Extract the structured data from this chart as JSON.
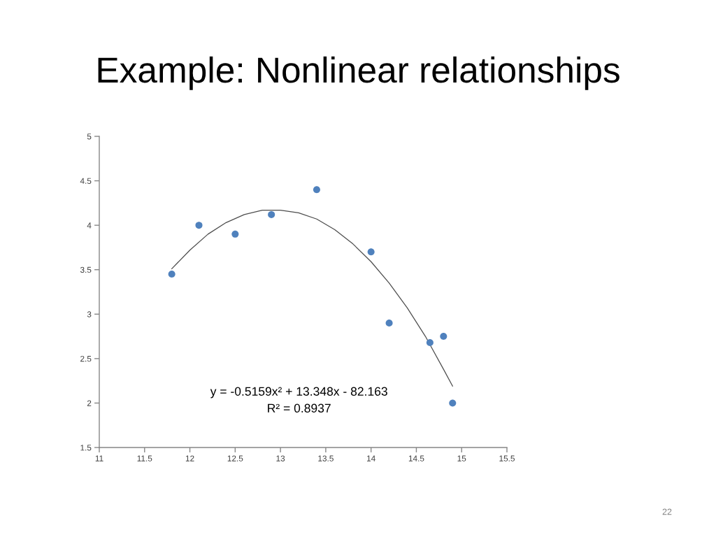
{
  "chart_data": {
    "type": "scatter",
    "title": "Example: Nonlinear relationships",
    "xlim": [
      11,
      15.5
    ],
    "xticks": [
      11,
      11.5,
      12,
      12.5,
      13,
      13.5,
      14,
      14.5,
      15,
      15.5
    ],
    "ylim": [
      1.5,
      5
    ],
    "yticks": [
      1.5,
      2,
      2.5,
      3,
      3.5,
      4,
      4.5,
      5
    ],
    "series": [
      {
        "color": "#4f81bd",
        "marker": "circle",
        "x": [
          11.8,
          12.1,
          12.5,
          12.9,
          13.4,
          14.0,
          14.2,
          14.65,
          14.8,
          14.9
        ],
        "values": [
          3.45,
          4.0,
          3.9,
          4.12,
          4.4,
          3.7,
          2.9,
          2.68,
          2.75,
          2.0
        ]
      },
      {
        "type": "line",
        "color": "#4d4d4d",
        "line_style": "solid",
        "x": [
          11.8,
          12.0,
          12.2,
          12.4,
          12.6,
          12.8,
          13.0,
          13.2,
          13.4,
          13.6,
          13.8,
          14.0,
          14.2,
          14.4,
          14.6,
          14.8,
          14.9
        ],
        "values": [
          3.51,
          3.72,
          3.9,
          4.03,
          4.12,
          4.17,
          4.17,
          4.14,
          4.07,
          3.95,
          3.79,
          3.59,
          3.35,
          3.07,
          2.75,
          2.38,
          2.19
        ]
      }
    ],
    "annotations": [
      "y = -0.5159x² + 13.348x - 82.163",
      "R² = 0.8937",
      "22"
    ]
  }
}
